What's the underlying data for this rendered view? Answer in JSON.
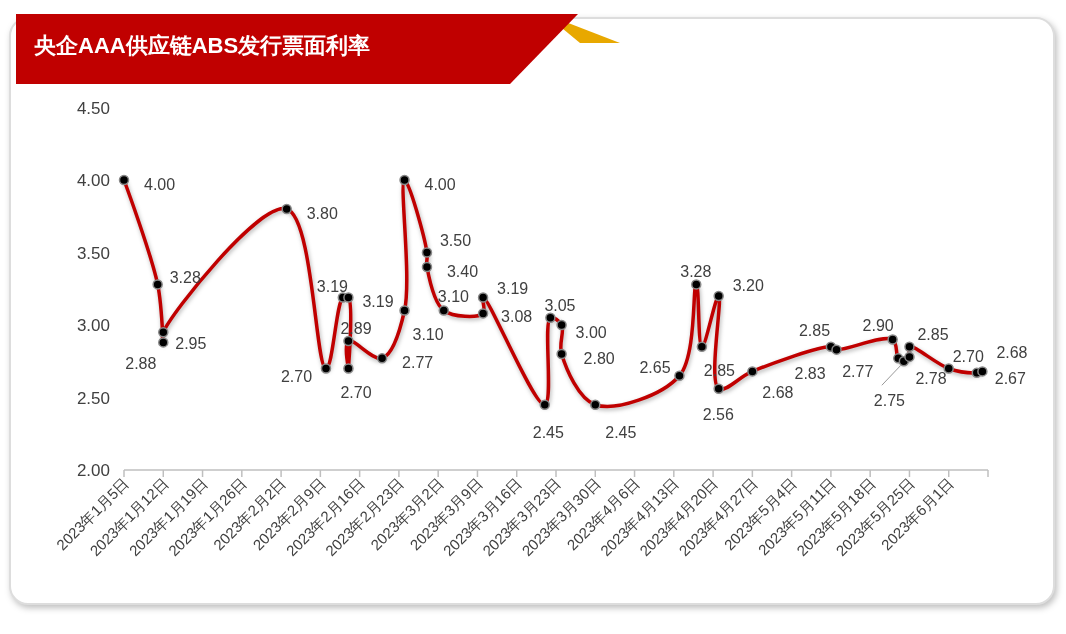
{
  "chart_data": {
    "type": "line",
    "title": "央企AAA供应链ABS发行票面利率",
    "x": [
      "2023-01-05",
      "2023-01-11",
      "2023-01-12",
      "2023-01-12",
      "2023-02-03",
      "2023-02-10",
      "2023-02-13",
      "2023-02-14",
      "2023-02-14",
      "2023-02-14",
      "2023-02-20",
      "2023-02-24",
      "2023-02-24",
      "2023-02-28",
      "2023-02-28",
      "2023-03-03",
      "2023-03-10",
      "2023-03-10",
      "2023-03-21",
      "2023-03-22",
      "2023-03-24",
      "2023-03-24",
      "2023-03-30",
      "2023-04-14",
      "2023-04-17",
      "2023-04-18",
      "2023-04-21",
      "2023-04-21",
      "2023-04-27",
      "2023-05-11",
      "2023-05-12",
      "2023-05-22",
      "2023-05-23",
      "2023-05-24",
      "2023-05-25",
      "2023-05-25",
      "2023-06-01",
      "2023-06-06",
      "2023-06-07"
    ],
    "series": [
      {
        "color": "#c00000",
        "values": [
          4.0,
          3.28,
          2.88,
          2.95,
          3.8,
          2.7,
          3.19,
          3.19,
          2.7,
          2.89,
          2.77,
          3.1,
          4.0,
          3.5,
          3.4,
          3.1,
          3.08,
          3.19,
          2.45,
          3.05,
          3.0,
          2.8,
          2.45,
          2.65,
          3.28,
          2.85,
          3.2,
          2.56,
          2.68,
          2.85,
          2.83,
          2.9,
          2.77,
          2.75,
          2.78,
          2.85,
          2.7,
          2.67,
          2.68
        ],
        "value_labels": [
          "4.00",
          "3.28",
          "2.88",
          "2.95",
          "3.80",
          "2.70",
          "3.19",
          "3.19",
          "2.70",
          "2.89",
          "2.77",
          "3.10",
          "4.00",
          "3.50",
          "3.40",
          "3.10",
          "3.08",
          "3.19",
          "2.45",
          "3.05",
          "3.00",
          "2.80",
          "2.45",
          "2.65",
          "3.28",
          "2.85",
          "3.20",
          "2.56",
          "2.68",
          "2.85",
          "2.83",
          "2.90",
          "2.77",
          "2.75",
          "2.78",
          "2.85",
          "2.70",
          "2.67",
          "2.68"
        ]
      }
    ],
    "marker": "circle",
    "grid": false,
    "ylim": [
      2,
      4.5
    ],
    "yticks": [
      {
        "value": 2,
        "label": "2.00"
      },
      {
        "value": 2.5,
        "label": "2.50"
      },
      {
        "value": 3,
        "label": "3.00"
      },
      {
        "value": 3.5,
        "label": "3.50"
      },
      {
        "value": 4,
        "label": "4.00"
      },
      {
        "value": 4.5,
        "label": "4.50"
      }
    ],
    "xlim": [
      "2023-01-05",
      "2023-06-08"
    ],
    "xticks": [
      {
        "value": "2023-01-05",
        "label": "2023年1月5日"
      },
      {
        "value": "2023-01-12",
        "label": "2023年1月12日"
      },
      {
        "value": "2023-01-19",
        "label": "2023年1月19日"
      },
      {
        "value": "2023-01-26",
        "label": "2023年1月26日"
      },
      {
        "value": "2023-02-02",
        "label": "2023年2月2日"
      },
      {
        "value": "2023-02-09",
        "label": "2023年2月9日"
      },
      {
        "value": "2023-02-16",
        "label": "2023年2月16日"
      },
      {
        "value": "2023-02-23",
        "label": "2023年2月23日"
      },
      {
        "value": "2023-03-02",
        "label": "2023年3月2日"
      },
      {
        "value": "2023-03-09",
        "label": "2023年3月9日"
      },
      {
        "value": "2023-03-16",
        "label": "2023年3月16日"
      },
      {
        "value": "2023-03-23",
        "label": "2023年3月23日"
      },
      {
        "value": "2023-03-30",
        "label": "2023年3月30日"
      },
      {
        "value": "2023-04-06",
        "label": "2023年4月6日"
      },
      {
        "value": "2023-04-13",
        "label": "2023年4月13日"
      },
      {
        "value": "2023-04-20",
        "label": "2023年4月20日"
      },
      {
        "value": "2023-04-27",
        "label": "2023年4月27日"
      },
      {
        "value": "2023-05-04",
        "label": "2023年5月4日"
      },
      {
        "value": "2023-05-11",
        "label": "2023年5月11日"
      },
      {
        "value": "2023-05-18",
        "label": "2023年5月18日"
      },
      {
        "value": "2023-05-25",
        "label": "2023年5月25日"
      },
      {
        "value": "2023-06-01",
        "label": "2023年6月1日"
      },
      {
        "value": "2023-06-08",
        "label": null
      }
    ]
  }
}
